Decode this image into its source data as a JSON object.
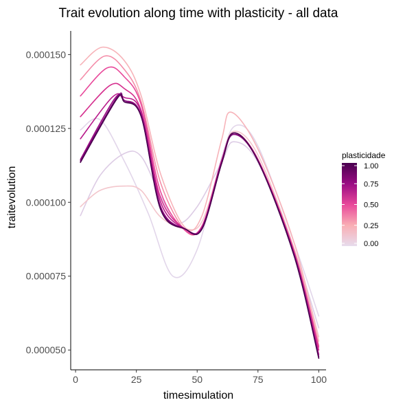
{
  "chart_data": {
    "type": "line",
    "title": "Trait evolution along time with plasticity - all data",
    "xlabel": "timesimulation",
    "ylabel": "traitevolution",
    "xlim": [
      -2,
      103
    ],
    "ylim": [
      4.33e-05,
      0.000158
    ],
    "x_ticks": [
      0,
      25,
      50,
      75,
      100
    ],
    "x_tick_labels": [
      "0",
      "25",
      "50",
      "75",
      "100"
    ],
    "y_ticks": [
      5e-05,
      7.5e-05,
      0.0001,
      0.000125,
      0.00015
    ],
    "y_tick_labels": [
      "0.000050",
      "0.000075",
      "0.000100",
      "0.000125",
      "0.000150"
    ],
    "grid": false,
    "legend": {
      "title": "plasticidade",
      "position": "right",
      "type": "colorbar",
      "range": [
        0,
        1
      ],
      "breaks": [
        0,
        0.25,
        0.5,
        0.75,
        1
      ],
      "labels": [
        "0.00",
        "0.25",
        "0.50",
        "0.75",
        "1.00"
      ],
      "gradient_colors": [
        "#e7dced",
        "#f9aeb4",
        "#e8489a",
        "#9a0c83",
        "#4a004f"
      ]
    },
    "series": [
      {
        "plasticity": 0.0,
        "color": "#e2d6ea",
        "points": [
          [
            2,
            0.0001245
          ],
          [
            10,
            0.000128
          ],
          [
            20,
            0.000114
          ],
          [
            30,
            9.6e-05
          ],
          [
            40,
            7.5e-05
          ],
          [
            50,
            8.4e-05
          ],
          [
            60,
            0.000115
          ],
          [
            66,
            0.000126
          ],
          [
            75,
            0.000119
          ],
          [
            90,
            8.6e-05
          ],
          [
            100,
            6.15e-05
          ]
        ]
      },
      {
        "plasticity": 0.0,
        "color": "#ddcce5",
        "points": [
          [
            2,
            9.55e-05
          ],
          [
            10,
            0.000109
          ],
          [
            20,
            0.0001165
          ],
          [
            27,
            0.0001155
          ],
          [
            35,
            0.000102
          ],
          [
            42,
            9.3e-05
          ],
          [
            50,
            9.85e-05
          ],
          [
            60,
            0.0001135
          ],
          [
            65,
            0.0001205
          ],
          [
            75,
            0.0001135
          ],
          [
            90,
            8.35e-05
          ],
          [
            100,
            5.75e-05
          ]
        ]
      },
      {
        "plasticity": 0.1,
        "color": "#f3c6cc",
        "points": [
          [
            2,
            9.85e-05
          ],
          [
            10,
            0.000104
          ],
          [
            20,
            0.0001055
          ],
          [
            27,
            0.000104
          ],
          [
            35,
            9.5e-05
          ],
          [
            45,
            9.1e-05
          ],
          [
            52,
            9.35e-05
          ],
          [
            60,
            0.000114
          ],
          [
            65,
            0.000124
          ],
          [
            75,
            0.000116
          ],
          [
            90,
            8.4e-05
          ],
          [
            100,
            5.45e-05
          ]
        ]
      },
      {
        "plasticity": 0.2,
        "color": "#f7b3b9",
        "points": [
          [
            2,
            0.0001465
          ],
          [
            11,
            0.0001525
          ],
          [
            20,
            0.000148
          ],
          [
            27,
            0.000136
          ],
          [
            35,
            0.0001095
          ],
          [
            45,
            9.15e-05
          ],
          [
            52,
            9.55e-05
          ],
          [
            60,
            0.000121
          ],
          [
            64,
            0.0001305
          ],
          [
            75,
            0.000118
          ],
          [
            90,
            8.6e-05
          ],
          [
            100,
            5.3e-05
          ]
        ]
      },
      {
        "plasticity": 0.35,
        "color": "#f48da9",
        "points": [
          [
            2,
            0.0001415
          ],
          [
            12,
            0.0001495
          ],
          [
            20,
            0.000145
          ],
          [
            27,
            0.000134
          ],
          [
            35,
            0.0001065
          ],
          [
            45,
            9.05e-05
          ],
          [
            52,
            9.2e-05
          ],
          [
            60,
            0.000113
          ],
          [
            65,
            0.0001235
          ],
          [
            75,
            0.0001145
          ],
          [
            90,
            8.35e-05
          ],
          [
            100,
            5.15e-05
          ]
        ]
      },
      {
        "plasticity": 0.5,
        "color": "#e8489a",
        "points": [
          [
            2,
            0.000136
          ],
          [
            13,
            0.0001455
          ],
          [
            20,
            0.0001425
          ],
          [
            27,
            0.000133
          ],
          [
            35,
            0.0001035
          ],
          [
            45,
            9.05e-05
          ],
          [
            52,
            9.2e-05
          ],
          [
            60,
            0.000114
          ],
          [
            65,
            0.000123
          ],
          [
            75,
            0.0001145
          ],
          [
            90,
            8.3e-05
          ],
          [
            100,
            5.1e-05
          ]
        ]
      },
      {
        "plasticity": 0.6,
        "color": "#d52f8e",
        "points": [
          [
            2,
            0.000129
          ],
          [
            14,
            0.0001395
          ],
          [
            20,
            0.0001385
          ],
          [
            27,
            0.000131
          ],
          [
            35,
            0.0001015
          ],
          [
            45,
            9.1e-05
          ],
          [
            52,
            9.15e-05
          ],
          [
            60,
            0.000114
          ],
          [
            65,
            0.000123
          ],
          [
            75,
            0.0001145
          ],
          [
            90,
            8.25e-05
          ],
          [
            100,
            5e-05
          ]
        ]
      },
      {
        "plasticity": 0.7,
        "color": "#b8198a",
        "points": [
          [
            2,
            0.0001215
          ],
          [
            15,
            0.0001355
          ],
          [
            20,
            0.0001355
          ],
          [
            27,
            0.0001305
          ],
          [
            35,
            0.0001
          ],
          [
            45,
            9.1e-05
          ],
          [
            52,
            9.15e-05
          ],
          [
            60,
            0.000114
          ],
          [
            65,
            0.000123
          ],
          [
            75,
            0.000114
          ],
          [
            90,
            8.2e-05
          ],
          [
            100,
            4.85e-05
          ]
        ]
      },
      {
        "plasticity": 0.8,
        "color": "#9a0c83",
        "points": [
          [
            2,
            0.0001145
          ],
          [
            16,
            0.000135
          ],
          [
            20,
            0.0001345
          ],
          [
            27,
            0.0001295
          ],
          [
            35,
            9.85e-05
          ],
          [
            45,
            9.1e-05
          ],
          [
            52,
            9.15e-05
          ],
          [
            60,
            0.0001135
          ],
          [
            65,
            0.0001235
          ],
          [
            75,
            0.000114
          ],
          [
            90,
            8.2e-05
          ],
          [
            100,
            4.78e-05
          ]
        ]
      },
      {
        "plasticity": 0.9,
        "color": "#7a0476",
        "points": [
          [
            2,
            0.000114
          ],
          [
            17,
            0.0001355
          ],
          [
            20,
            0.0001345
          ],
          [
            27,
            0.000129
          ],
          [
            35,
            9.8e-05
          ],
          [
            45,
            9.1e-05
          ],
          [
            52,
            9.1e-05
          ],
          [
            60,
            0.000113
          ],
          [
            65,
            0.000123
          ],
          [
            75,
            0.000114
          ],
          [
            90,
            8.2e-05
          ],
          [
            100,
            4.75e-05
          ]
        ]
      },
      {
        "plasticity": 1.0,
        "color": "#4a004f",
        "points": [
          [
            2,
            0.0001135
          ],
          [
            17,
            0.000135
          ],
          [
            20,
            0.000134
          ],
          [
            27,
            0.000129
          ],
          [
            35,
            9.75e-05
          ],
          [
            45,
            9.1e-05
          ],
          [
            52,
            9.1e-05
          ],
          [
            60,
            0.000113
          ],
          [
            65,
            0.0001235
          ],
          [
            75,
            0.000114
          ],
          [
            90,
            8.15e-05
          ],
          [
            100,
            4.72e-05
          ]
        ]
      }
    ]
  }
}
